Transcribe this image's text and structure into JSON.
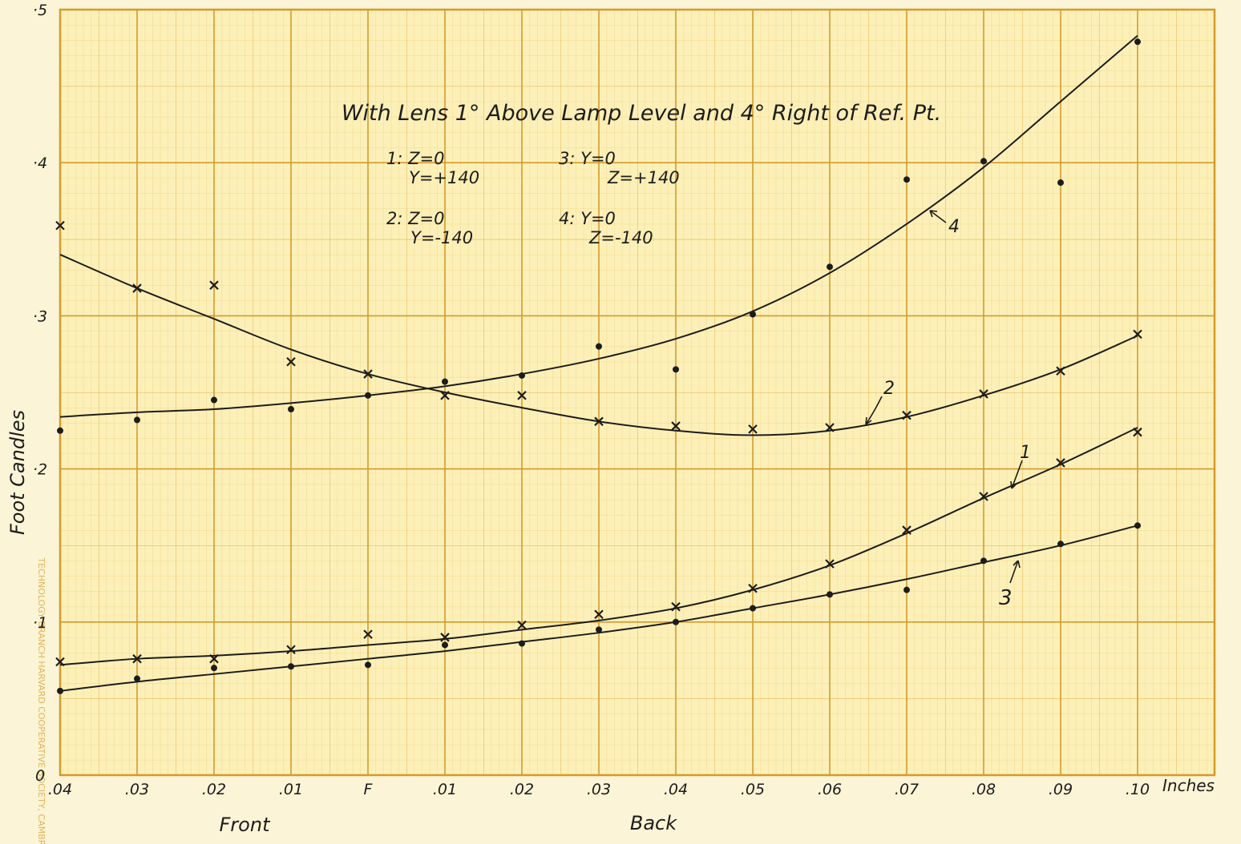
{
  "chart_data": {
    "type": "scatter",
    "title": "With Lens 1° Above Lamp Level and 4° Right of Ref. Pt.",
    "y_label": "Foot Candles",
    "x_unit": "Inches",
    "x_regions": [
      "Front",
      "Back"
    ],
    "stamp": "TECHNOLOGY BRANCH HARVARD COOPERATIVE SOCIETY, CAMBRIDGE",
    "x": [
      -0.04,
      -0.03,
      -0.02,
      -0.01,
      0,
      0.01,
      0.02,
      0.03,
      0.04,
      0.05,
      0.06,
      0.07,
      0.08,
      0.09,
      0.1
    ],
    "xlim": [
      -0.04,
      0.11
    ],
    "ylim": [
      0,
      0.5
    ],
    "xticks": [
      {
        "value": -0.04,
        "label": ".04"
      },
      {
        "value": -0.03,
        "label": ".03"
      },
      {
        "value": -0.02,
        "label": ".02"
      },
      {
        "value": -0.01,
        "label": ".01"
      },
      {
        "value": 0,
        "label": "F"
      },
      {
        "value": 0.01,
        "label": ".01"
      },
      {
        "value": 0.02,
        "label": ".02"
      },
      {
        "value": 0.03,
        "label": ".03"
      },
      {
        "value": 0.04,
        "label": ".04"
      },
      {
        "value": 0.05,
        "label": ".05"
      },
      {
        "value": 0.06,
        "label": ".06"
      },
      {
        "value": 0.07,
        "label": ".07"
      },
      {
        "value": 0.08,
        "label": ".08"
      },
      {
        "value": 0.09,
        "label": ".09"
      },
      {
        "value": 0.1,
        "label": ".10"
      }
    ],
    "yticks": [
      0,
      {
        "value": 0.1,
        "label": "·1"
      },
      {
        "value": 0.2,
        "label": "·2"
      },
      {
        "value": 0.3,
        "label": "·3"
      },
      {
        "value": 0.4,
        "label": "·4"
      },
      {
        "value": 0.5,
        "label": "·5"
      }
    ],
    "grid": true,
    "series": [
      {
        "name": "1",
        "legend": [
          "1: Z=0",
          "Y=+140"
        ],
        "marker": "x",
        "color": "#1c1c1c",
        "values": [
          0.074,
          0.076,
          0.076,
          0.082,
          0.092,
          0.09,
          0.098,
          0.105,
          0.11,
          0.122,
          0.138,
          0.16,
          0.182,
          0.204,
          0.224
        ],
        "curve": [
          0.072,
          0.076,
          0.078,
          0.081,
          0.085,
          0.089,
          0.095,
          0.101,
          0.109,
          0.121,
          0.137,
          0.158,
          0.181,
          0.203,
          0.227
        ]
      },
      {
        "name": "2",
        "legend": [
          "2: Z=0",
          "Y=-140"
        ],
        "marker": "x",
        "color": "#1c1c1c",
        "values": [
          0.359,
          0.318,
          0.32,
          0.27,
          0.262,
          0.248,
          0.248,
          0.231,
          0.228,
          0.226,
          0.227,
          0.235,
          0.249,
          0.264,
          0.288
        ],
        "curve": [
          0.34,
          0.318,
          0.298,
          0.278,
          0.262,
          0.25,
          0.24,
          0.231,
          0.225,
          0.222,
          0.225,
          0.234,
          0.248,
          0.265,
          0.287
        ]
      },
      {
        "name": "3",
        "legend": [
          "3: Y=0",
          "Z=+140"
        ],
        "marker": "dot",
        "color": "#1c1c1c",
        "values": [
          0.055,
          0.063,
          0.07,
          0.071,
          0.072,
          0.085,
          0.086,
          0.095,
          0.1,
          0.109,
          0.118,
          0.121,
          0.14,
          0.151,
          0.163
        ],
        "curve": [
          0.055,
          0.061,
          0.066,
          0.071,
          0.076,
          0.081,
          0.087,
          0.093,
          0.1,
          0.109,
          0.118,
          0.128,
          0.139,
          0.15,
          0.163
        ]
      },
      {
        "name": "4",
        "legend": [
          "4: Y=0",
          "Z=-140"
        ],
        "marker": "dot",
        "color": "#1c1c1c",
        "values": [
          0.225,
          0.232,
          0.245,
          0.239,
          0.248,
          0.257,
          0.261,
          0.28,
          0.265,
          0.301,
          0.332,
          0.389,
          0.401,
          0.387,
          0.479
        ],
        "curve": [
          0.234,
          0.237,
          0.239,
          0.243,
          0.248,
          0.254,
          0.262,
          0.272,
          0.285,
          0.303,
          0.328,
          0.36,
          0.397,
          0.44,
          0.483
        ]
      }
    ]
  }
}
